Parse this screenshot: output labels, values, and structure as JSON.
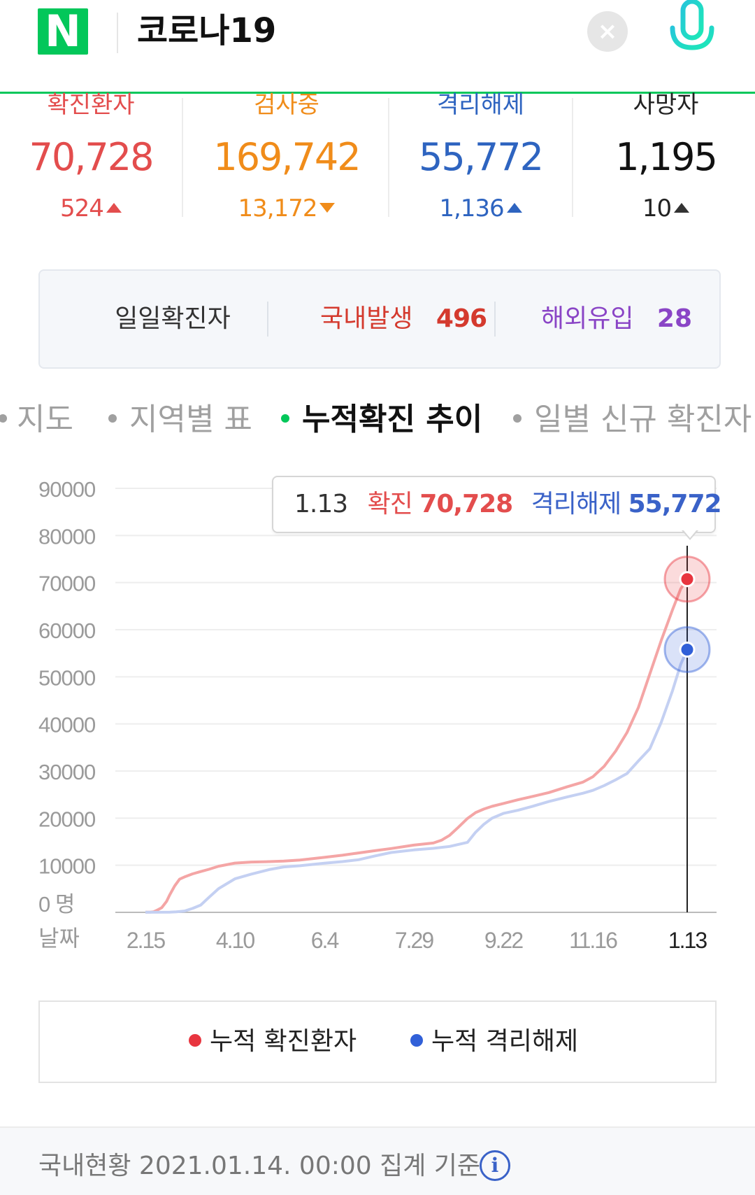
{
  "header": {
    "logo_text": "N",
    "search_query": "코로나19",
    "clear_label": "×"
  },
  "stats": [
    {
      "label": "확진환자",
      "value": "70,728",
      "delta": "524",
      "direction": "up",
      "color": "#e34d4d",
      "value_color": "#e34d4d",
      "delta_color": "#e34d4d",
      "arrow_color": "#e34d4d"
    },
    {
      "label": "검사중",
      "value": "169,742",
      "delta": "13,172",
      "direction": "down",
      "color": "#f08c1a",
      "value_color": "#f08c1a",
      "delta_color": "#f08c1a",
      "arrow_color": "#f08c1a"
    },
    {
      "label": "격리해제",
      "value": "55,772",
      "delta": "1,136",
      "direction": "up",
      "color": "#2e64c0",
      "value_color": "#2e64c0",
      "delta_color": "#2e64c0",
      "arrow_color": "#2e64c0"
    },
    {
      "label": "사망자",
      "value": "1,195",
      "delta": "10",
      "direction": "up",
      "color": "#222222",
      "value_color": "#111111",
      "delta_color": "#222222",
      "arrow_color": "#333333"
    }
  ],
  "daily": {
    "title": "일일확진자",
    "domestic_label": "국내발생",
    "domestic_value": "496",
    "overseas_label": "해외유입",
    "overseas_value": "28"
  },
  "tabs": [
    {
      "label": "지도",
      "active": false
    },
    {
      "label": "지역별 표",
      "active": false
    },
    {
      "label": "누적확진 추이",
      "active": true
    },
    {
      "label": "일별 신규 확진자",
      "active": false
    }
  ],
  "tooltip": {
    "date": "1.13",
    "confirmed_label": "확진",
    "confirmed_value": "70,728",
    "released_label": "격리해제",
    "released_value": "55,772"
  },
  "chart_data": {
    "type": "line",
    "y_ticks": [
      "90000",
      "80000",
      "70000",
      "60000",
      "50000",
      "40000",
      "30000",
      "20000",
      "10000",
      "0 명"
    ],
    "x_tick_labels": [
      "2.15",
      "4.10",
      "6.4",
      "7.29",
      "9.22",
      "11.16",
      "1.13"
    ],
    "x_axis_label": "날짜",
    "ylim": [
      0,
      90000
    ],
    "series": [
      {
        "name": "누적 확진환자",
        "color": "#f4a5a5",
        "marker_color": "#e8353f",
        "points": [
          [
            "2.15",
            28
          ],
          [
            "2.18",
            31
          ],
          [
            "2.20",
            104
          ],
          [
            "2.22",
            433
          ],
          [
            "2.25",
            977
          ],
          [
            "2.28",
            2337
          ],
          [
            "3.1",
            3736
          ],
          [
            "3.4",
            5621
          ],
          [
            "3.7",
            7041
          ],
          [
            "3.10",
            7513
          ],
          [
            "3.15",
            8162
          ],
          [
            "3.20",
            8652
          ],
          [
            "3.25",
            9137
          ],
          [
            "3.31",
            9786
          ],
          [
            "4.10",
            10450
          ],
          [
            "4.20",
            10674
          ],
          [
            "5.1",
            10774
          ],
          [
            "5.10",
            10874
          ],
          [
            "5.20",
            11110
          ],
          [
            "6.4",
            11668
          ],
          [
            "6.15",
            12121
          ],
          [
            "6.25",
            12602
          ],
          [
            "7.5",
            13091
          ],
          [
            "7.15",
            13551
          ],
          [
            "7.29",
            14269
          ],
          [
            "8.10",
            14714
          ],
          [
            "8.15",
            15318
          ],
          [
            "8.20",
            16346
          ],
          [
            "8.25",
            17945
          ],
          [
            "8.31",
            19947
          ],
          [
            "9.5",
            21177
          ],
          [
            "9.10",
            21919
          ],
          [
            "9.15",
            22504
          ],
          [
            "9.22",
            23106
          ],
          [
            "10.1",
            23889
          ],
          [
            "10.10",
            24606
          ],
          [
            "10.20",
            25424
          ],
          [
            "10.31",
            26635
          ],
          [
            "11.10",
            27653
          ],
          [
            "11.16",
            28769
          ],
          [
            "11.23",
            31004
          ],
          [
            "11.30",
            34201
          ],
          [
            "12.7",
            38161
          ],
          [
            "12.14",
            43484
          ],
          [
            "12.21",
            50591
          ],
          [
            "12.28",
            57680
          ],
          [
            "1.4",
            64264
          ],
          [
            "1.9",
            68664
          ],
          [
            "1.13",
            70728
          ]
        ]
      },
      {
        "name": "누적 격리해제",
        "color": "#c4d0f2",
        "marker_color": "#3160d8",
        "points": [
          [
            "2.15",
            9
          ],
          [
            "3.1",
            30
          ],
          [
            "3.5",
            108
          ],
          [
            "3.10",
            288
          ],
          [
            "3.15",
            834
          ],
          [
            "3.20",
            1540
          ],
          [
            "3.25",
            3166
          ],
          [
            "3.31",
            5033
          ],
          [
            "4.10",
            7117
          ],
          [
            "4.20",
            8114
          ],
          [
            "5.1",
            9072
          ],
          [
            "5.10",
            9632
          ],
          [
            "5.20",
            9898
          ],
          [
            "6.4",
            10446
          ],
          [
            "6.15",
            10762
          ],
          [
            "6.25",
            11172
          ],
          [
            "7.5",
            11970
          ],
          [
            "7.15",
            12698
          ],
          [
            "7.29",
            13254
          ],
          [
            "8.10",
            13583
          ],
          [
            "8.20",
            13997
          ],
          [
            "8.31",
            14862
          ],
          [
            "9.5",
            17023
          ],
          [
            "9.10",
            18676
          ],
          [
            "9.15",
            19970
          ],
          [
            "9.22",
            21007
          ],
          [
            "10.1",
            21666
          ],
          [
            "10.10",
            22520
          ],
          [
            "10.20",
            23520
          ],
          [
            "10.31",
            24479
          ],
          [
            "11.10",
            25291
          ],
          [
            "11.16",
            25888
          ],
          [
            "11.23",
            26908
          ],
          [
            "11.30",
            28129
          ],
          [
            "12.7",
            29470
          ],
          [
            "12.14",
            32145
          ],
          [
            "12.21",
            34706
          ],
          [
            "12.28",
            40314
          ],
          [
            "1.4",
            47089
          ],
          [
            "1.9",
            52636
          ],
          [
            "1.13",
            55772
          ]
        ]
      }
    ]
  },
  "legend": {
    "confirmed": "누적 확진환자",
    "released": "누적 격리해제"
  },
  "footer": {
    "text": "국내현황 2021.01.14. 00:00 집계 기준",
    "info_label": "i"
  }
}
